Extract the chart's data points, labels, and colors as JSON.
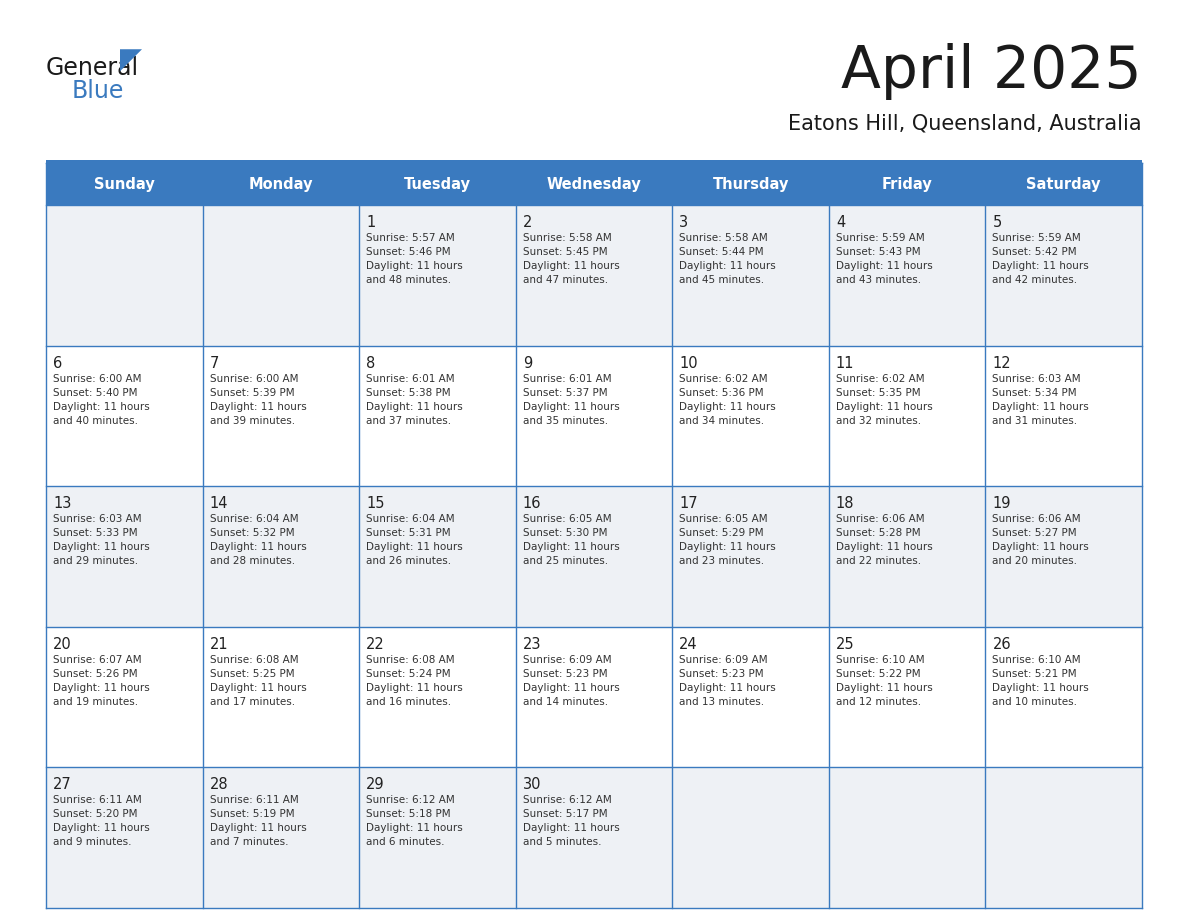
{
  "title": "April 2025",
  "subtitle": "Eatons Hill, Queensland, Australia",
  "header_bg_color": "#3a7abf",
  "header_text_color": "#ffffff",
  "row_odd_color": "#eef1f5",
  "row_even_color": "#ffffff",
  "border_color": "#3a7abf",
  "title_color": "#1a1a1a",
  "subtitle_color": "#1a1a1a",
  "day_number_color": "#222222",
  "cell_text_color": "#333333",
  "days_of_week": [
    "Sunday",
    "Monday",
    "Tuesday",
    "Wednesday",
    "Thursday",
    "Friday",
    "Saturday"
  ],
  "weeks": [
    [
      {
        "day": null,
        "info": null
      },
      {
        "day": null,
        "info": null
      },
      {
        "day": 1,
        "info": "Sunrise: 5:57 AM\nSunset: 5:46 PM\nDaylight: 11 hours\nand 48 minutes."
      },
      {
        "day": 2,
        "info": "Sunrise: 5:58 AM\nSunset: 5:45 PM\nDaylight: 11 hours\nand 47 minutes."
      },
      {
        "day": 3,
        "info": "Sunrise: 5:58 AM\nSunset: 5:44 PM\nDaylight: 11 hours\nand 45 minutes."
      },
      {
        "day": 4,
        "info": "Sunrise: 5:59 AM\nSunset: 5:43 PM\nDaylight: 11 hours\nand 43 minutes."
      },
      {
        "day": 5,
        "info": "Sunrise: 5:59 AM\nSunset: 5:42 PM\nDaylight: 11 hours\nand 42 minutes."
      }
    ],
    [
      {
        "day": 6,
        "info": "Sunrise: 6:00 AM\nSunset: 5:40 PM\nDaylight: 11 hours\nand 40 minutes."
      },
      {
        "day": 7,
        "info": "Sunrise: 6:00 AM\nSunset: 5:39 PM\nDaylight: 11 hours\nand 39 minutes."
      },
      {
        "day": 8,
        "info": "Sunrise: 6:01 AM\nSunset: 5:38 PM\nDaylight: 11 hours\nand 37 minutes."
      },
      {
        "day": 9,
        "info": "Sunrise: 6:01 AM\nSunset: 5:37 PM\nDaylight: 11 hours\nand 35 minutes."
      },
      {
        "day": 10,
        "info": "Sunrise: 6:02 AM\nSunset: 5:36 PM\nDaylight: 11 hours\nand 34 minutes."
      },
      {
        "day": 11,
        "info": "Sunrise: 6:02 AM\nSunset: 5:35 PM\nDaylight: 11 hours\nand 32 minutes."
      },
      {
        "day": 12,
        "info": "Sunrise: 6:03 AM\nSunset: 5:34 PM\nDaylight: 11 hours\nand 31 minutes."
      }
    ],
    [
      {
        "day": 13,
        "info": "Sunrise: 6:03 AM\nSunset: 5:33 PM\nDaylight: 11 hours\nand 29 minutes."
      },
      {
        "day": 14,
        "info": "Sunrise: 6:04 AM\nSunset: 5:32 PM\nDaylight: 11 hours\nand 28 minutes."
      },
      {
        "day": 15,
        "info": "Sunrise: 6:04 AM\nSunset: 5:31 PM\nDaylight: 11 hours\nand 26 minutes."
      },
      {
        "day": 16,
        "info": "Sunrise: 6:05 AM\nSunset: 5:30 PM\nDaylight: 11 hours\nand 25 minutes."
      },
      {
        "day": 17,
        "info": "Sunrise: 6:05 AM\nSunset: 5:29 PM\nDaylight: 11 hours\nand 23 minutes."
      },
      {
        "day": 18,
        "info": "Sunrise: 6:06 AM\nSunset: 5:28 PM\nDaylight: 11 hours\nand 22 minutes."
      },
      {
        "day": 19,
        "info": "Sunrise: 6:06 AM\nSunset: 5:27 PM\nDaylight: 11 hours\nand 20 minutes."
      }
    ],
    [
      {
        "day": 20,
        "info": "Sunrise: 6:07 AM\nSunset: 5:26 PM\nDaylight: 11 hours\nand 19 minutes."
      },
      {
        "day": 21,
        "info": "Sunrise: 6:08 AM\nSunset: 5:25 PM\nDaylight: 11 hours\nand 17 minutes."
      },
      {
        "day": 22,
        "info": "Sunrise: 6:08 AM\nSunset: 5:24 PM\nDaylight: 11 hours\nand 16 minutes."
      },
      {
        "day": 23,
        "info": "Sunrise: 6:09 AM\nSunset: 5:23 PM\nDaylight: 11 hours\nand 14 minutes."
      },
      {
        "day": 24,
        "info": "Sunrise: 6:09 AM\nSunset: 5:23 PM\nDaylight: 11 hours\nand 13 minutes."
      },
      {
        "day": 25,
        "info": "Sunrise: 6:10 AM\nSunset: 5:22 PM\nDaylight: 11 hours\nand 12 minutes."
      },
      {
        "day": 26,
        "info": "Sunrise: 6:10 AM\nSunset: 5:21 PM\nDaylight: 11 hours\nand 10 minutes."
      }
    ],
    [
      {
        "day": 27,
        "info": "Sunrise: 6:11 AM\nSunset: 5:20 PM\nDaylight: 11 hours\nand 9 minutes."
      },
      {
        "day": 28,
        "info": "Sunrise: 6:11 AM\nSunset: 5:19 PM\nDaylight: 11 hours\nand 7 minutes."
      },
      {
        "day": 29,
        "info": "Sunrise: 6:12 AM\nSunset: 5:18 PM\nDaylight: 11 hours\nand 6 minutes."
      },
      {
        "day": 30,
        "info": "Sunrise: 6:12 AM\nSunset: 5:17 PM\nDaylight: 11 hours\nand 5 minutes."
      },
      {
        "day": null,
        "info": null
      },
      {
        "day": null,
        "info": null
      },
      {
        "day": null,
        "info": null
      }
    ]
  ],
  "logo_text_general": "General",
  "logo_text_blue": "Blue",
  "logo_color_general": "#1a1a1a",
  "logo_color_blue": "#3a7abf",
  "logo_triangle_color": "#3a7abf"
}
